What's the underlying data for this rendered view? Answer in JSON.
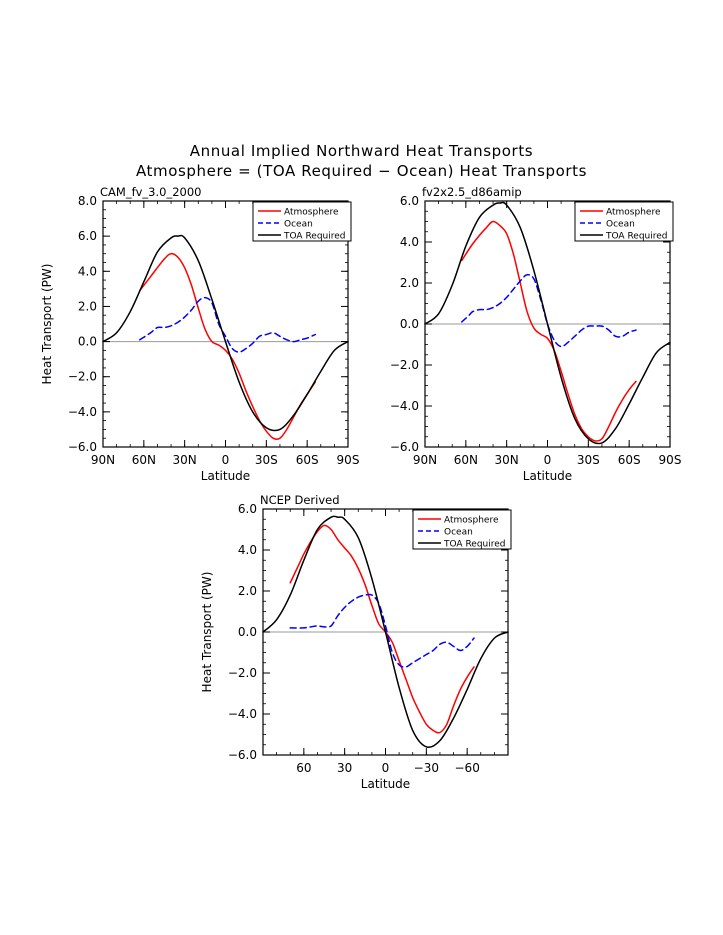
{
  "title_line1": "Annual Implied Northward Heat Transports",
  "title_line2": "Atmosphere = (TOA Required − Ocean) Heat Transports",
  "colors": {
    "atmosphere": "#ff0000",
    "ocean": "#0000ff",
    "toa": "#000000",
    "zero_line": "#999999"
  },
  "chart_data": [
    {
      "type": "line",
      "title": "CAM_fv_3.0_2000",
      "xlabel": "Latitude",
      "ylabel": "Heat Transport (PW)",
      "xlim": [
        90,
        -90
      ],
      "ylim": [
        -6,
        8
      ],
      "xticks": [
        90,
        60,
        30,
        0,
        -30,
        -60,
        -90
      ],
      "xtick_labels": [
        "90N",
        "60N",
        "30N",
        "0",
        "30S",
        "60S",
        "90S"
      ],
      "yticks": [
        -6,
        -4,
        -2,
        0,
        2,
        4,
        6,
        8
      ],
      "ytick_labels": [
        "−6.0",
        "−4.0",
        "−2.0",
        "0.0",
        "2.0",
        "4.0",
        "6.0",
        "8.0"
      ],
      "legend": "top-right",
      "series": [
        {
          "name": "Atmosphere",
          "style": "solid",
          "x": [
            63,
            55,
            45,
            40,
            35,
            30,
            25,
            20,
            15,
            10,
            5,
            0,
            -5,
            -10,
            -15,
            -20,
            -25,
            -30,
            -35,
            -40,
            -45,
            -50,
            -55,
            -60,
            -66
          ],
          "y": [
            2.9,
            3.7,
            4.7,
            5.0,
            4.8,
            4.2,
            3.2,
            1.9,
            0.7,
            0.0,
            -0.2,
            -0.5,
            -1.0,
            -1.8,
            -2.8,
            -3.7,
            -4.5,
            -5.1,
            -5.5,
            -5.5,
            -5.0,
            -4.3,
            -3.6,
            -3.0,
            -2.3
          ]
        },
        {
          "name": "Ocean",
          "style": "dashed",
          "x": [
            63,
            55,
            50,
            45,
            40,
            35,
            30,
            25,
            20,
            15,
            10,
            5,
            0,
            -5,
            -10,
            -15,
            -20,
            -25,
            -30,
            -35,
            -40,
            -45,
            -50,
            -55,
            -60,
            -66
          ],
          "y": [
            0.1,
            0.5,
            0.8,
            0.8,
            0.9,
            1.1,
            1.4,
            1.8,
            2.3,
            2.5,
            2.2,
            1.0,
            0.3,
            -0.4,
            -0.6,
            -0.4,
            -0.1,
            0.3,
            0.4,
            0.5,
            0.3,
            0.1,
            0.0,
            0.1,
            0.2,
            0.4
          ]
        },
        {
          "name": "TOA Required",
          "style": "solid",
          "x": [
            90,
            80,
            70,
            60,
            50,
            40,
            35,
            30,
            20,
            10,
            0,
            -10,
            -20,
            -30,
            -40,
            -50,
            -60,
            -70,
            -80,
            -90
          ],
          "y": [
            0.0,
            0.5,
            1.7,
            3.4,
            5.1,
            5.9,
            6.0,
            5.9,
            4.6,
            2.4,
            0.0,
            -2.3,
            -4.0,
            -4.9,
            -5.0,
            -4.2,
            -3.0,
            -1.7,
            -0.5,
            0.0
          ]
        }
      ]
    },
    {
      "type": "line",
      "title": "fv2x2.5_d86amip",
      "xlabel": "Latitude",
      "ylabel": "",
      "xlim": [
        90,
        -90
      ],
      "ylim": [
        -6,
        6
      ],
      "xticks": [
        90,
        60,
        30,
        0,
        -30,
        -60,
        -90
      ],
      "xtick_labels": [
        "90N",
        "60N",
        "30N",
        "0",
        "30S",
        "60S",
        "90S"
      ],
      "yticks": [
        -6,
        -4,
        -2,
        0,
        2,
        4,
        6
      ],
      "ytick_labels": [
        "−6.0",
        "−4.0",
        "−2.0",
        "0.0",
        "2.0",
        "4.0",
        "6.0"
      ],
      "legend": "top-right",
      "series": [
        {
          "name": "Atmosphere",
          "style": "solid",
          "x": [
            63,
            55,
            45,
            40,
            35,
            30,
            25,
            20,
            15,
            10,
            5,
            0,
            -5,
            -10,
            -15,
            -20,
            -25,
            -30,
            -35,
            -40,
            -45,
            -50,
            -55,
            -60,
            -65
          ],
          "y": [
            3.1,
            3.9,
            4.7,
            5.0,
            4.8,
            4.4,
            3.4,
            2.0,
            0.6,
            -0.2,
            -0.5,
            -0.7,
            -1.3,
            -2.3,
            -3.4,
            -4.4,
            -5.1,
            -5.5,
            -5.7,
            -5.6,
            -5.0,
            -4.3,
            -3.7,
            -3.2,
            -2.8
          ]
        },
        {
          "name": "Ocean",
          "style": "dashed",
          "x": [
            63,
            58,
            55,
            50,
            45,
            40,
            35,
            30,
            25,
            20,
            15,
            10,
            5,
            0,
            -5,
            -10,
            -15,
            -20,
            -25,
            -30,
            -35,
            -40,
            -45,
            -50,
            -55,
            -60,
            -65
          ],
          "y": [
            0.1,
            0.4,
            0.6,
            0.7,
            0.7,
            0.8,
            1.0,
            1.3,
            1.7,
            2.1,
            2.4,
            2.2,
            1.2,
            0.0,
            -0.8,
            -1.1,
            -0.9,
            -0.6,
            -0.3,
            -0.1,
            -0.1,
            -0.1,
            -0.3,
            -0.6,
            -0.6,
            -0.4,
            -0.3
          ]
        },
        {
          "name": "TOA Required",
          "style": "solid",
          "x": [
            90,
            80,
            70,
            60,
            50,
            40,
            35,
            30,
            20,
            10,
            0,
            -10,
            -20,
            -30,
            -40,
            -50,
            -60,
            -70,
            -80,
            -90
          ],
          "y": [
            0.0,
            0.5,
            1.9,
            3.8,
            5.2,
            5.8,
            5.9,
            5.8,
            4.7,
            2.6,
            0.0,
            -2.6,
            -4.6,
            -5.6,
            -5.8,
            -5.1,
            -3.9,
            -2.6,
            -1.4,
            -0.9
          ]
        }
      ]
    },
    {
      "type": "line",
      "title": "NCEP Derived",
      "xlabel": "Latitude",
      "ylabel": "Heat Transport (PW)",
      "xlim": [
        90,
        -90
      ],
      "ylim": [
        -6,
        6
      ],
      "xticks": [
        60,
        30,
        0,
        -30,
        -60
      ],
      "xtick_labels": [
        "60",
        "30",
        "0",
        "−30",
        "−60"
      ],
      "yticks": [
        -6,
        -4,
        -2,
        0,
        2,
        4,
        6
      ],
      "ytick_labels": [
        "−6.0",
        "−4.0",
        "−2.0",
        "0.0",
        "2.0",
        "4.0",
        "6.0"
      ],
      "legend": "top-right",
      "series": [
        {
          "name": "Atmosphere",
          "style": "solid",
          "x": [
            70,
            65,
            60,
            55,
            50,
            45,
            40,
            35,
            30,
            25,
            20,
            15,
            10,
            5,
            0,
            -5,
            -10,
            -15,
            -20,
            -25,
            -30,
            -35,
            -40,
            -45,
            -50,
            -55,
            -60,
            -65
          ],
          "y": [
            2.4,
            3.1,
            3.8,
            4.4,
            4.9,
            5.2,
            5.0,
            4.5,
            4.1,
            3.7,
            3.1,
            2.3,
            1.3,
            0.4,
            0.0,
            -0.5,
            -1.4,
            -2.3,
            -3.2,
            -3.9,
            -4.5,
            -4.8,
            -4.9,
            -4.5,
            -3.6,
            -2.8,
            -2.2,
            -1.7
          ]
        },
        {
          "name": "Ocean",
          "style": "dashed",
          "x": [
            70,
            60,
            55,
            50,
            45,
            40,
            35,
            30,
            25,
            20,
            15,
            10,
            5,
            0,
            -5,
            -10,
            -15,
            -20,
            -25,
            -30,
            -35,
            -40,
            -45,
            -50,
            -55,
            -60,
            -65
          ],
          "y": [
            0.2,
            0.2,
            0.25,
            0.3,
            0.25,
            0.3,
            0.8,
            1.2,
            1.5,
            1.7,
            1.8,
            1.8,
            1.4,
            0.3,
            -1.0,
            -1.6,
            -1.7,
            -1.5,
            -1.3,
            -1.1,
            -0.9,
            -0.6,
            -0.5,
            -0.7,
            -0.9,
            -0.7,
            -0.3
          ]
        },
        {
          "name": "TOA Required",
          "style": "solid",
          "x": [
            90,
            80,
            70,
            60,
            50,
            40,
            35,
            30,
            20,
            10,
            0,
            -10,
            -20,
            -30,
            -40,
            -50,
            -60,
            -70,
            -80,
            -90
          ],
          "y": [
            0.0,
            0.6,
            1.8,
            3.5,
            5.0,
            5.6,
            5.6,
            5.5,
            4.6,
            2.6,
            0.0,
            -2.7,
            -4.8,
            -5.6,
            -5.3,
            -4.2,
            -2.8,
            -1.3,
            -0.3,
            0.0
          ]
        }
      ]
    }
  ]
}
